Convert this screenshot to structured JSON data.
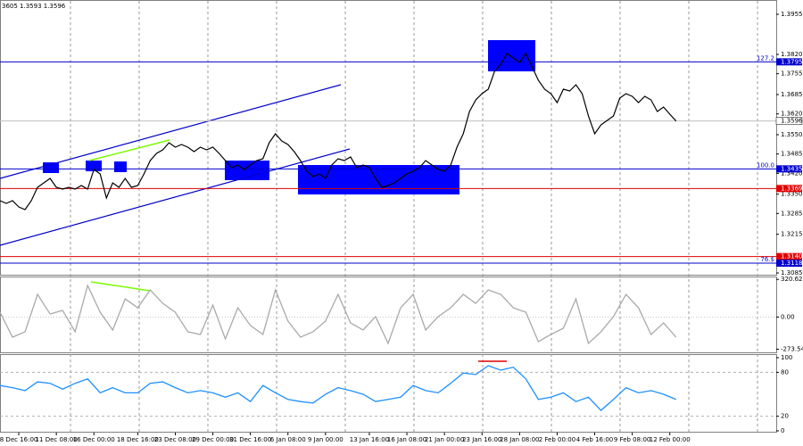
{
  "chart_data": [
    {
      "type": "line",
      "header": "3605 1.3593 1.3596",
      "color": "#000000",
      "xlim": [
        0,
        124
      ],
      "ylim": [
        1.3079,
        1.4003
      ],
      "yticks": [
        1.3955,
        {
          "value": 1.382,
          "label": "1.3820"
        },
        1.3755,
        1.3685,
        {
          "value": 1.362,
          "label": "1.3620"
        },
        {
          "value": 1.355,
          "label": "1.3550"
        },
        1.3485,
        {
          "value": 1.342,
          "label": "1.3420"
        },
        {
          "value": 1.335,
          "label": "1.3350"
        },
        1.3285,
        1.3215,
        1.3085
      ],
      "current": 1.3596,
      "levels": [
        {
          "value": 1.3795,
          "label": "1.3795",
          "fib": "127.2",
          "color": "#0000cd"
        },
        {
          "value": 1.3435,
          "label": "1.3435",
          "fib": "100.0",
          "color": "#0000cd"
        },
        {
          "value": 1.3369,
          "label": "1.3369",
          "color": "#e00000"
        },
        {
          "value": 1.314,
          "label": "1.3140",
          "color": "#e00000"
        },
        {
          "value": 1.3118,
          "label": "1.3118",
          "fib": "76.$",
          "color": "#0000cd"
        }
      ],
      "x": [
        0,
        1,
        2,
        3,
        4,
        5,
        6,
        7,
        8,
        9,
        10,
        11,
        12,
        13,
        14,
        15,
        16,
        17,
        18,
        19,
        20,
        21,
        22,
        23,
        24,
        25,
        26,
        27,
        28,
        29,
        30,
        31,
        32,
        33,
        34,
        35,
        36,
        37,
        38,
        39,
        40,
        41,
        42,
        43,
        44,
        45,
        46,
        47,
        48,
        49,
        50,
        51,
        52,
        53,
        54,
        55,
        56,
        57,
        58,
        59,
        60,
        61,
        62,
        63,
        64,
        65,
        66,
        67,
        68,
        69,
        70,
        71,
        72,
        73,
        74,
        75,
        76,
        77,
        78,
        79,
        80,
        81,
        82,
        83,
        84,
        85,
        86,
        87,
        88,
        89,
        90,
        91,
        92,
        93,
        94,
        95,
        96,
        97,
        98,
        99,
        100,
        101,
        102,
        103,
        104,
        105,
        106,
        107,
        108
      ],
      "values": [
        1.3328,
        1.3319,
        1.3328,
        1.3307,
        1.3298,
        1.3328,
        1.3373,
        1.3388,
        1.3403,
        1.3373,
        1.3367,
        1.3373,
        1.3367,
        1.3379,
        1.3367,
        1.3433,
        1.3418,
        1.3337,
        1.3388,
        1.3373,
        1.3403,
        1.3373,
        1.3379,
        1.3418,
        1.3463,
        1.3487,
        1.3499,
        1.3523,
        1.3508,
        1.3517,
        1.3508,
        1.3493,
        1.3508,
        1.3499,
        1.3508,
        1.3487,
        1.3463,
        1.3439,
        1.3448,
        1.3433,
        1.3448,
        1.3463,
        1.3469,
        1.3523,
        1.3553,
        1.3529,
        1.3517,
        1.3493,
        1.3463,
        1.3427,
        1.3409,
        1.3418,
        1.3403,
        1.3448,
        1.3469,
        1.3463,
        1.3475,
        1.3439,
        1.3448,
        1.3439,
        1.3403,
        1.3373,
        1.3379,
        1.3388,
        1.3403,
        1.3418,
        1.3427,
        1.3439,
        1.3463,
        1.3448,
        1.3433,
        1.3427,
        1.3448,
        1.3508,
        1.3553,
        1.3628,
        1.3667,
        1.3688,
        1.3703,
        1.3763,
        1.3787,
        1.3823,
        1.3808,
        1.3793,
        1.3823,
        1.3778,
        1.3733,
        1.3703,
        1.3688,
        1.3658,
        1.3703,
        1.3697,
        1.3718,
        1.3688,
        1.3613,
        1.3553,
        1.3583,
        1.3598,
        1.3613,
        1.3673,
        1.3688,
        1.3679,
        1.3658,
        1.3679,
        1.3667,
        1.3628,
        1.3643,
        1.3619,
        1.3596
      ]
    },
    {
      "type": "line",
      "color": "#a9a9a9",
      "xlim": [
        0,
        124
      ],
      "ylim": [
        -300,
        345
      ],
      "yticks": [
        320.6269,
        {
          "value": 0,
          "label": "0.00"
        },
        -273.545
      ],
      "x": [
        0,
        2,
        4,
        6,
        8,
        10,
        12,
        14,
        16,
        18,
        20,
        22,
        24,
        26,
        28,
        30,
        32,
        34,
        36,
        38,
        40,
        42,
        44,
        46,
        48,
        50,
        52,
        54,
        56,
        58,
        60,
        62,
        64,
        66,
        68,
        70,
        72,
        74,
        76,
        78,
        80,
        82,
        84,
        86,
        88,
        90,
        92,
        94,
        96,
        98,
        100,
        102,
        104,
        106,
        108
      ],
      "values": [
        41,
        -171,
        -125,
        193,
        26,
        57,
        -125,
        269,
        41,
        -110,
        155,
        79,
        231,
        117,
        41,
        -125,
        -148,
        102,
        -186,
        79,
        -72,
        -148,
        231,
        -34,
        -171,
        -125,
        -34,
        193,
        -50,
        -110,
        4,
        -224,
        79,
        193,
        -110,
        4,
        79,
        193,
        117,
        231,
        193,
        79,
        41,
        -209,
        -148,
        -95,
        155,
        -224,
        -125,
        4,
        193,
        79,
        -148,
        -50,
        -171
      ]
    },
    {
      "type": "line",
      "color": "#1e90ff",
      "xlim": [
        0,
        124
      ],
      "ylim": [
        0,
        100
      ],
      "yticks": [
        100,
        80,
        20,
        0
      ],
      "x": [
        0,
        2,
        4,
        6,
        8,
        10,
        12,
        14,
        16,
        18,
        20,
        22,
        24,
        26,
        28,
        30,
        32,
        34,
        36,
        38,
        40,
        42,
        44,
        46,
        48,
        50,
        52,
        54,
        56,
        58,
        60,
        62,
        64,
        66,
        68,
        70,
        72,
        74,
        76,
        78,
        80,
        82,
        84,
        86,
        88,
        90,
        92,
        94,
        96,
        98,
        100,
        102,
        104,
        106,
        108
      ],
      "values": [
        62,
        59,
        55,
        67,
        65,
        57,
        65,
        71,
        52,
        59,
        52,
        52,
        65,
        67,
        59,
        52,
        55,
        52,
        46,
        52,
        40,
        62,
        52,
        43,
        40,
        38,
        50,
        59,
        55,
        50,
        40,
        43,
        46,
        62,
        55,
        52,
        65,
        79,
        77,
        89,
        83,
        87,
        71,
        43,
        46,
        52,
        40,
        46,
        28,
        43,
        59,
        52,
        55,
        50,
        43
      ],
      "xticks": [
        {
          "value": 3,
          "label": "8 Dec 16:00"
        },
        {
          "value": 9,
          "label": "11 Dec 08:00"
        },
        {
          "value": 15,
          "label": "16 Dec 00:00"
        },
        {
          "value": 22,
          "label": "18 Dec 16:00"
        },
        {
          "value": 28,
          "label": "23 Dec 08:00"
        },
        {
          "value": 34,
          "label": "29 Dec 00:00"
        },
        {
          "value": 40,
          "label": "31 Dec 16:00"
        },
        {
          "value": 46,
          "label": "6 Jan 08:00"
        },
        {
          "value": 52,
          "label": "9 Jan 00:00"
        },
        {
          "value": 59,
          "label": "13 Jan 16:00"
        },
        {
          "value": 65,
          "label": "16 Jan 08:00"
        },
        {
          "value": 71,
          "label": "21 Jan 00:00"
        },
        {
          "value": 77,
          "label": "23 Jan 16:00"
        },
        {
          "value": 83,
          "label": "28 Jan 08:00"
        },
        {
          "value": 89,
          "label": "2 Feb 00:00"
        },
        {
          "value": 95,
          "label": "4 Feb 16:00"
        },
        {
          "value": 101,
          "label": "9 Feb 08:00"
        },
        {
          "value": 107,
          "label": "12 Feb 00:00"
        }
      ]
    }
  ]
}
